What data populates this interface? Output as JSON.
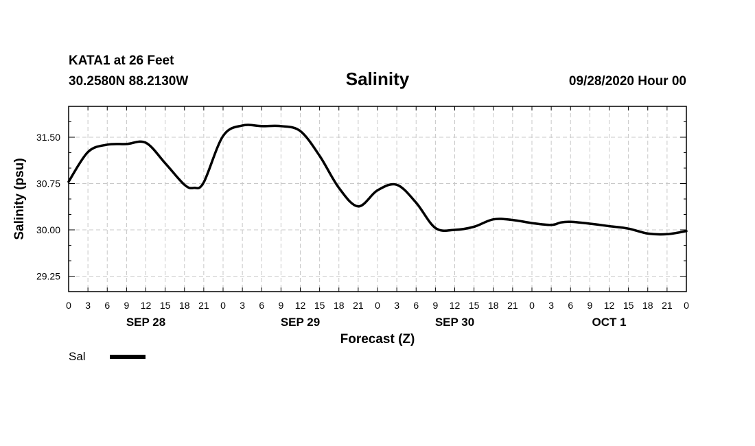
{
  "header": {
    "station": "KATA1 at 26 Feet",
    "coords": "30.2580N 88.2130W",
    "title": "Salinity",
    "timestamp": "09/28/2020 Hour 00"
  },
  "chart_data": {
    "type": "line",
    "title": "Salinity",
    "xlabel": "Forecast (Z)",
    "ylabel": "Salinity (psu)",
    "xlim": [
      0,
      96
    ],
    "ylim": [
      29.0,
      32.0
    ],
    "grid": true,
    "legend_position": "bottom-left",
    "x_tick_labels": [
      "0",
      "3",
      "6",
      "9",
      "12",
      "15",
      "18",
      "21",
      "0",
      "3",
      "6",
      "9",
      "12",
      "15",
      "18",
      "21",
      "0",
      "3",
      "6",
      "9",
      "12",
      "15",
      "18",
      "21",
      "0",
      "3",
      "6",
      "9",
      "12",
      "15",
      "18",
      "21",
      "0"
    ],
    "y_ticks": [
      29.25,
      30.0,
      30.75,
      31.5
    ],
    "y_tick_labels": [
      "29.25",
      "30.00",
      "30.75",
      "31.50"
    ],
    "day_labels": [
      {
        "label": "SEP 28",
        "x": 12
      },
      {
        "label": "SEP 29",
        "x": 36
      },
      {
        "label": "SEP 30",
        "x": 60
      },
      {
        "label": "OCT 1",
        "x": 84
      }
    ],
    "series": [
      {
        "name": "Sal",
        "color": "#000000",
        "x": [
          0,
          3,
          6,
          9,
          12,
          15,
          18,
          19.5,
          21,
          24,
          27,
          30,
          33,
          36,
          39,
          42,
          45,
          48,
          51,
          54,
          57,
          60,
          63,
          66,
          69,
          72,
          75,
          76.5,
          78,
          81,
          84,
          87,
          90,
          93,
          96
        ],
        "y": [
          30.78,
          31.26,
          31.38,
          31.39,
          31.41,
          31.08,
          30.73,
          30.68,
          30.77,
          31.52,
          31.69,
          31.68,
          31.68,
          31.6,
          31.2,
          30.68,
          30.38,
          30.64,
          30.73,
          30.44,
          30.03,
          30.0,
          30.05,
          30.17,
          30.16,
          30.11,
          30.08,
          30.12,
          30.13,
          30.1,
          30.06,
          30.02,
          29.94,
          29.93,
          29.98
        ]
      }
    ]
  }
}
